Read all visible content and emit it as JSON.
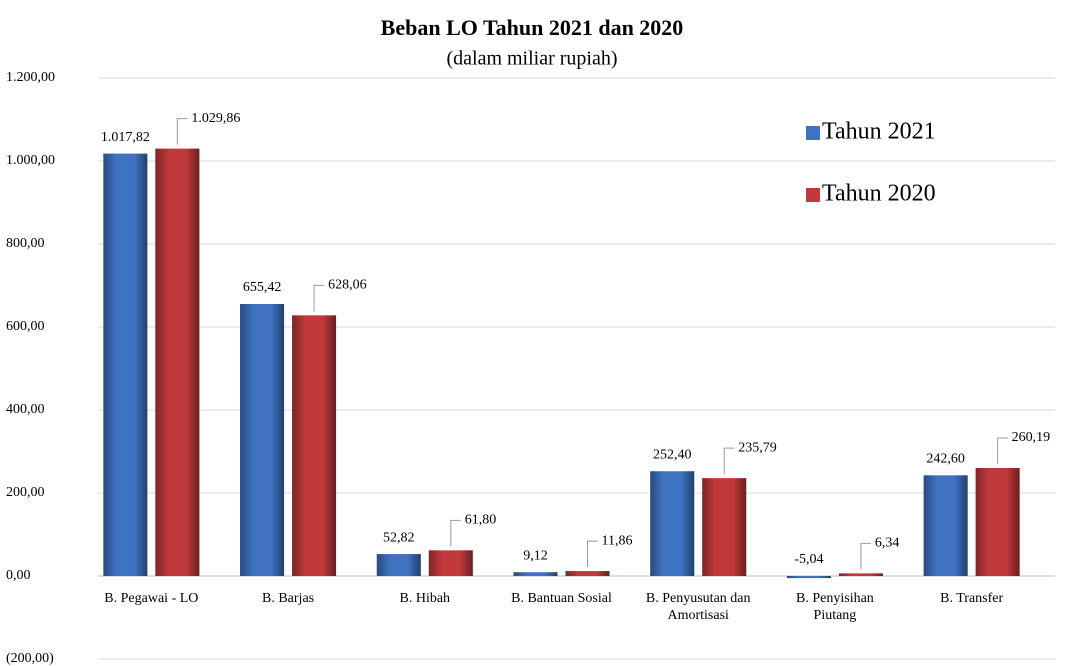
{
  "chart_data": {
    "type": "bar",
    "title": "Beban LO Tahun 2021 dan 2020",
    "subtitle": "(dalam miliar rupiah)",
    "categories": [
      "B. Pegawai - LO",
      "B. Barjas",
      "B. Hibah",
      "B. Bantuan Sosial",
      "B. Penyusutan dan Amortisasi",
      "B. Penyisihan Piutang",
      "B. Transfer"
    ],
    "series": [
      {
        "name": "Tahun 2021",
        "color": "#3f73c2",
        "values": [
          1017.82,
          655.42,
          52.82,
          9.12,
          252.4,
          -5.04,
          242.6
        ],
        "value_labels": [
          "1.017,82",
          "655,42",
          "52,82",
          "9,12",
          "252,40",
          "-5,04",
          "242,60"
        ]
      },
      {
        "name": "Tahun 2020",
        "color": "#c0393b",
        "values": [
          1029.86,
          628.06,
          61.8,
          11.86,
          235.79,
          6.34,
          260.19
        ],
        "value_labels": [
          "1.029,86",
          "628,06",
          "61,80",
          "11,86",
          "235,79",
          "6,34",
          "260,19"
        ]
      }
    ],
    "ylim": [
      -200,
      1200
    ],
    "yticks": [
      {
        "value": -200,
        "label": "(200,00)"
      },
      {
        "value": 0,
        "label": "0,00"
      },
      {
        "value": 200,
        "label": "200,00"
      },
      {
        "value": 400,
        "label": "400,00"
      },
      {
        "value": 600,
        "label": "600,00"
      },
      {
        "value": 800,
        "label": "800,00"
      },
      {
        "value": 1000,
        "label": "1.000,00"
      },
      {
        "value": 1200,
        "label": "1.200,00"
      }
    ],
    "grid": true,
    "legend": "top-right"
  }
}
